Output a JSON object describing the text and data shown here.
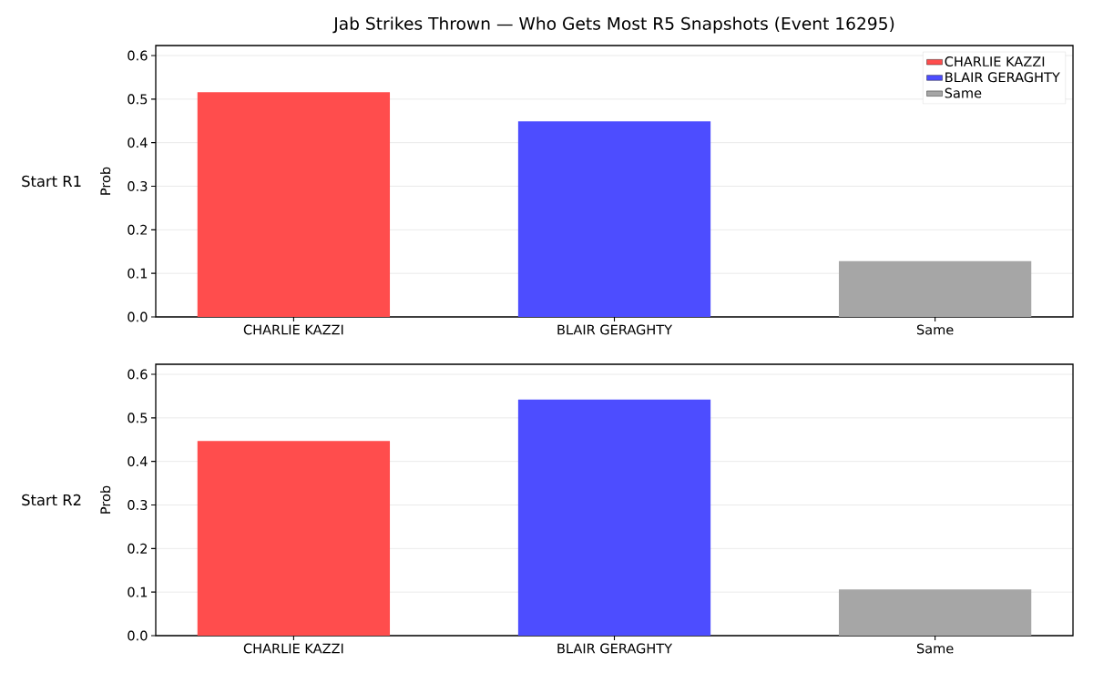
{
  "chart_data": [
    {
      "type": "bar",
      "title": "Jab Strikes Thrown — Who Gets Most R5 Snapshots (Event 16295)",
      "categories": [
        "CHARLIE KAZZI",
        "BLAIR GERAGHTY",
        "Same"
      ],
      "series": [
        {
          "name": "CHARLIE KAZZI",
          "color": "#ff4d4d",
          "values": [
            0.516,
            null,
            null
          ]
        },
        {
          "name": "BLAIR GERAGHTY",
          "color": "#4d4dff",
          "values": [
            null,
            0.449,
            null
          ]
        },
        {
          "name": "Same",
          "color": "#a6a6a6",
          "values": [
            null,
            null,
            0.128
          ]
        }
      ],
      "ylabel": "Prob",
      "ylim": [
        0,
        0.623
      ],
      "yticks": [
        {
          "value": 0,
          "label": "0.0"
        },
        0.1,
        0.2,
        0.3,
        0.4,
        0.5,
        0.6
      ],
      "grid": "y",
      "legend": "top right",
      "annotations": [
        "Start R1"
      ]
    },
    {
      "type": "bar",
      "categories": [
        "CHARLIE KAZZI",
        "BLAIR GERAGHTY",
        "Same"
      ],
      "values": [
        0.447,
        0.542,
        0.106
      ],
      "colors": [
        "#ff4d4d",
        "#4d4dff",
        "#a6a6a6"
      ],
      "ylabel": "Prob",
      "ylim": [
        0,
        0.623
      ],
      "yticks": [
        {
          "value": 0,
          "label": "0.0"
        },
        0.1,
        0.2,
        0.3,
        0.4,
        0.5,
        0.6
      ],
      "grid": "y",
      "annotations": [
        "Start R2"
      ]
    }
  ]
}
